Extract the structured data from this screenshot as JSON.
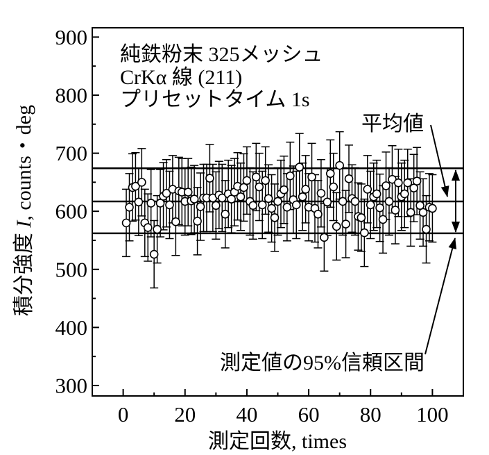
{
  "chart_data": {
    "type": "scatter",
    "xlabel": "測定回数, times",
    "ylabel": {
      "prefix": "積分強度 ",
      "symbol": "I",
      "suffix": ", counts・deg"
    },
    "xlim": [
      -10,
      110
    ],
    "ylim": [
      282,
      916
    ],
    "xticks": [
      0,
      20,
      40,
      60,
      80,
      100
    ],
    "yticks": [
      300,
      400,
      500,
      600,
      700,
      800,
      900
    ],
    "grid": false,
    "series": [
      {
        "x": [
          1,
          2,
          3,
          4,
          5,
          6,
          7,
          8,
          9,
          10,
          11,
          12,
          13,
          14,
          15,
          16,
          17,
          18,
          19,
          20,
          21,
          22,
          23,
          24,
          25,
          26,
          27,
          28,
          29,
          30,
          31,
          32,
          33,
          34,
          35,
          36,
          37,
          38,
          39,
          40,
          41,
          42,
          43,
          44,
          45,
          46,
          47,
          48,
          49,
          50,
          51,
          52,
          53,
          54,
          55,
          56,
          57,
          58,
          59,
          60,
          61,
          62,
          63,
          64,
          65,
          66,
          67,
          68,
          69,
          70,
          71,
          72,
          73,
          74,
          75,
          76,
          77,
          78,
          79,
          80,
          81,
          82,
          83,
          84,
          85,
          86,
          87,
          88,
          89,
          90,
          91,
          92,
          93,
          94,
          95,
          96,
          97,
          98,
          99,
          100
        ],
        "y": [
          580,
          607,
          641,
          643,
          616,
          650,
          580,
          572,
          614,
          526,
          569,
          614,
          626,
          631,
          611,
          638,
          582,
          635,
          633,
          617,
          633,
          618,
          621,
          583,
          608,
          623,
          623,
          657,
          623,
          610,
          628,
          623,
          595,
          630,
          621,
          633,
          643,
          625,
          641,
          653,
          617,
          610,
          659,
          642,
          611,
          653,
          622,
          605,
          589,
          617,
          630,
          637,
          607,
          661,
          620,
          611,
          676,
          625,
          638,
          607,
          659,
          605,
          595,
          631,
          555,
          616,
          665,
          642,
          574,
          679,
          617,
          578,
          656,
          622,
          617,
          591,
          589,
          563,
          638,
          611,
          625,
          630,
          606,
          586,
          644,
          617,
          655,
          602,
          649,
          625,
          630,
          649,
          598,
          640,
          652,
          610,
          598,
          569,
          607,
          605
        ],
        "yerr": 58
      }
    ],
    "reference_lines": {
      "ci_upper": 674,
      "mean": 617,
      "ci_lower": 562
    },
    "annotations": {
      "sample": "純鉄粉末 325メッシュ",
      "radiation": "CrKα 線 (211)",
      "preset": "プリセットタイム 1s",
      "mean_label": "平均値",
      "ci_label": "測定値の95%信頼区間"
    },
    "colors": {
      "ink": "#000000",
      "marker_fill": "#ffffff",
      "background": "#ffffff"
    }
  }
}
